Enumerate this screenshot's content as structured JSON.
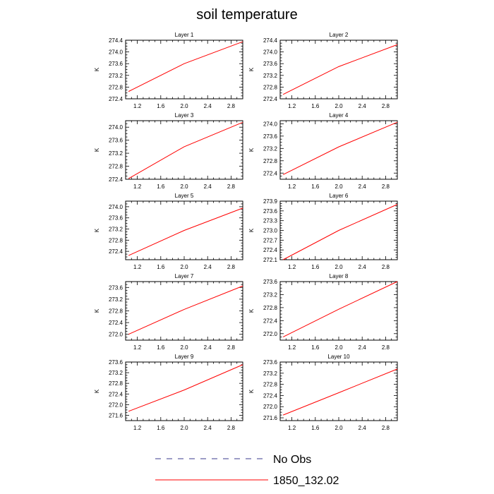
{
  "title": "soil temperature",
  "legend": [
    {
      "label": "No Obs",
      "color": "#3b3b8c",
      "dash": "dashed"
    },
    {
      "label": "1850_132.02",
      "color": "#ff0000",
      "dash": "solid"
    }
  ],
  "chart_data": [
    {
      "type": "line",
      "title": "Layer 1",
      "ylabel": "K",
      "xlim": [
        1.0,
        3.0
      ],
      "xticks": [
        "1.2",
        "1.6",
        "2.0",
        "2.4",
        "2.8"
      ],
      "ylim": [
        272.4,
        274.4
      ],
      "yticks": [
        "272.4",
        "272.8",
        "273.2",
        "273.6",
        "274.0",
        "274.4"
      ],
      "series": [
        {
          "name": "1850_132.02",
          "x": [
            1.05,
            2.0,
            3.0
          ],
          "y": [
            272.65,
            273.6,
            274.35
          ]
        }
      ]
    },
    {
      "type": "line",
      "title": "Layer 2",
      "ylabel": "K",
      "xlim": [
        1.0,
        3.0
      ],
      "xticks": [
        "1.2",
        "1.6",
        "2.0",
        "2.4",
        "2.8"
      ],
      "ylim": [
        272.4,
        274.4
      ],
      "yticks": [
        "272.4",
        "272.8",
        "273.2",
        "273.6",
        "274.0",
        "274.4"
      ],
      "series": [
        {
          "name": "1850_132.02",
          "x": [
            1.05,
            2.0,
            3.0
          ],
          "y": [
            272.55,
            273.5,
            274.25
          ]
        }
      ]
    },
    {
      "type": "line",
      "title": "Layer 3",
      "ylabel": "K",
      "xlim": [
        1.0,
        3.0
      ],
      "xticks": [
        "1.2",
        "1.6",
        "2.0",
        "2.4",
        "2.8"
      ],
      "ylim": [
        272.4,
        274.2
      ],
      "yticks": [
        "272.4",
        "272.8",
        "273.2",
        "273.6",
        "274.0"
      ],
      "series": [
        {
          "name": "1850_132.02",
          "x": [
            1.05,
            2.0,
            3.0
          ],
          "y": [
            272.42,
            273.4,
            274.15
          ]
        }
      ]
    },
    {
      "type": "line",
      "title": "Layer 4",
      "ylabel": "K",
      "xlim": [
        1.0,
        3.0
      ],
      "xticks": [
        "1.2",
        "1.6",
        "2.0",
        "2.4",
        "2.8"
      ],
      "ylim": [
        272.2,
        274.1
      ],
      "yticks": [
        "272.4",
        "272.8",
        "273.2",
        "273.6",
        "274.0"
      ],
      "series": [
        {
          "name": "1850_132.02",
          "x": [
            1.05,
            2.0,
            3.0
          ],
          "y": [
            272.35,
            273.25,
            274.05
          ]
        }
      ]
    },
    {
      "type": "line",
      "title": "Layer 5",
      "ylabel": "K",
      "xlim": [
        1.0,
        3.0
      ],
      "xticks": [
        "1.2",
        "1.6",
        "2.0",
        "2.4",
        "2.8"
      ],
      "ylim": [
        272.1,
        274.2
      ],
      "yticks": [
        "272.4",
        "272.8",
        "273.2",
        "273.6",
        "274.0"
      ],
      "series": [
        {
          "name": "1850_132.02",
          "x": [
            1.05,
            2.0,
            3.0
          ],
          "y": [
            272.25,
            273.15,
            273.95
          ]
        }
      ]
    },
    {
      "type": "line",
      "title": "Layer 6",
      "ylabel": "K",
      "xlim": [
        1.0,
        3.0
      ],
      "xticks": [
        "1.2",
        "1.6",
        "2.0",
        "2.4",
        "2.8"
      ],
      "ylim": [
        272.1,
        273.9
      ],
      "yticks": [
        "272.1",
        "272.4",
        "272.7",
        "273.0",
        "273.3",
        "273.6",
        "273.9"
      ],
      "series": [
        {
          "name": "1850_132.02",
          "x": [
            1.05,
            2.0,
            3.0
          ],
          "y": [
            272.1,
            273.0,
            273.8
          ]
        }
      ]
    },
    {
      "type": "line",
      "title": "Layer 7",
      "ylabel": "K",
      "xlim": [
        1.0,
        3.0
      ],
      "xticks": [
        "1.2",
        "1.6",
        "2.0",
        "2.4",
        "2.8"
      ],
      "ylim": [
        271.8,
        273.8
      ],
      "yticks": [
        "272.0",
        "272.4",
        "272.8",
        "273.2",
        "273.6"
      ],
      "series": [
        {
          "name": "1850_132.02",
          "x": [
            1.05,
            2.0,
            3.0
          ],
          "y": [
            272.0,
            272.85,
            273.65
          ]
        }
      ]
    },
    {
      "type": "line",
      "title": "Layer 8",
      "ylabel": "K",
      "xlim": [
        1.0,
        3.0
      ],
      "xticks": [
        "1.2",
        "1.6",
        "2.0",
        "2.4",
        "2.8"
      ],
      "ylim": [
        271.8,
        273.6
      ],
      "yticks": [
        "272.0",
        "272.4",
        "272.8",
        "273.2",
        "273.6"
      ],
      "series": [
        {
          "name": "1850_132.02",
          "x": [
            1.05,
            2.0,
            3.0
          ],
          "y": [
            271.9,
            272.75,
            273.6
          ]
        }
      ]
    },
    {
      "type": "line",
      "title": "Layer 9",
      "ylabel": "K",
      "xlim": [
        1.0,
        3.0
      ],
      "xticks": [
        "1.2",
        "1.6",
        "2.0",
        "2.4",
        "2.8"
      ],
      "ylim": [
        271.4,
        273.6
      ],
      "yticks": [
        "271.6",
        "272.0",
        "272.4",
        "272.8",
        "273.2",
        "273.6"
      ],
      "series": [
        {
          "name": "1850_132.02",
          "x": [
            1.05,
            2.0,
            3.0
          ],
          "y": [
            271.75,
            272.55,
            273.5
          ]
        }
      ]
    },
    {
      "type": "line",
      "title": "Layer 10",
      "ylabel": "K",
      "xlim": [
        1.0,
        3.0
      ],
      "xticks": [
        "1.2",
        "1.6",
        "2.0",
        "2.4",
        "2.8"
      ],
      "ylim": [
        271.5,
        273.6
      ],
      "yticks": [
        "271.6",
        "272.0",
        "272.4",
        "272.8",
        "273.2",
        "273.6"
      ],
      "series": [
        {
          "name": "1850_132.02",
          "x": [
            1.05,
            2.0,
            3.0
          ],
          "y": [
            271.7,
            272.5,
            273.35
          ]
        }
      ]
    }
  ]
}
